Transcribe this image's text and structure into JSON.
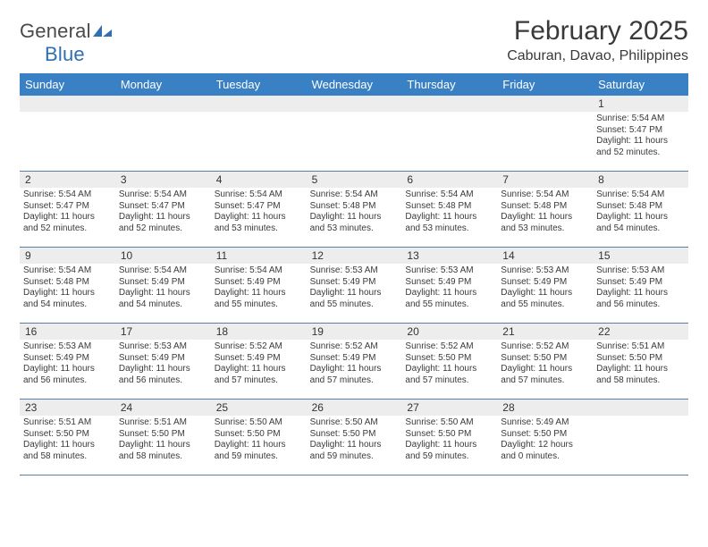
{
  "logo": {
    "text1": "General",
    "text2": "Blue",
    "icon_color": "#2f6fb3"
  },
  "title": "February 2025",
  "location": "Caburan, Davao, Philippines",
  "header_bg": "#3a80c4",
  "header_fg": "#ffffff",
  "daynum_bg": "#ededed",
  "row_border": "#5a7fa6",
  "text_color": "#3a3a3a",
  "weekday_fontsize": 13,
  "title_fontsize": 30,
  "location_fontsize": 16,
  "cell_fontsize": 10,
  "weekdays": [
    "Sunday",
    "Monday",
    "Tuesday",
    "Wednesday",
    "Thursday",
    "Friday",
    "Saturday"
  ],
  "weeks": [
    [
      {
        "n": "",
        "lines": []
      },
      {
        "n": "",
        "lines": []
      },
      {
        "n": "",
        "lines": []
      },
      {
        "n": "",
        "lines": []
      },
      {
        "n": "",
        "lines": []
      },
      {
        "n": "",
        "lines": []
      },
      {
        "n": "1",
        "lines": [
          "Sunrise: 5:54 AM",
          "Sunset: 5:47 PM",
          "Daylight: 11 hours and 52 minutes."
        ]
      }
    ],
    [
      {
        "n": "2",
        "lines": [
          "Sunrise: 5:54 AM",
          "Sunset: 5:47 PM",
          "Daylight: 11 hours and 52 minutes."
        ]
      },
      {
        "n": "3",
        "lines": [
          "Sunrise: 5:54 AM",
          "Sunset: 5:47 PM",
          "Daylight: 11 hours and 52 minutes."
        ]
      },
      {
        "n": "4",
        "lines": [
          "Sunrise: 5:54 AM",
          "Sunset: 5:47 PM",
          "Daylight: 11 hours and 53 minutes."
        ]
      },
      {
        "n": "5",
        "lines": [
          "Sunrise: 5:54 AM",
          "Sunset: 5:48 PM",
          "Daylight: 11 hours and 53 minutes."
        ]
      },
      {
        "n": "6",
        "lines": [
          "Sunrise: 5:54 AM",
          "Sunset: 5:48 PM",
          "Daylight: 11 hours and 53 minutes."
        ]
      },
      {
        "n": "7",
        "lines": [
          "Sunrise: 5:54 AM",
          "Sunset: 5:48 PM",
          "Daylight: 11 hours and 53 minutes."
        ]
      },
      {
        "n": "8",
        "lines": [
          "Sunrise: 5:54 AM",
          "Sunset: 5:48 PM",
          "Daylight: 11 hours and 54 minutes."
        ]
      }
    ],
    [
      {
        "n": "9",
        "lines": [
          "Sunrise: 5:54 AM",
          "Sunset: 5:48 PM",
          "Daylight: 11 hours and 54 minutes."
        ]
      },
      {
        "n": "10",
        "lines": [
          "Sunrise: 5:54 AM",
          "Sunset: 5:49 PM",
          "Daylight: 11 hours and 54 minutes."
        ]
      },
      {
        "n": "11",
        "lines": [
          "Sunrise: 5:54 AM",
          "Sunset: 5:49 PM",
          "Daylight: 11 hours and 55 minutes."
        ]
      },
      {
        "n": "12",
        "lines": [
          "Sunrise: 5:53 AM",
          "Sunset: 5:49 PM",
          "Daylight: 11 hours and 55 minutes."
        ]
      },
      {
        "n": "13",
        "lines": [
          "Sunrise: 5:53 AM",
          "Sunset: 5:49 PM",
          "Daylight: 11 hours and 55 minutes."
        ]
      },
      {
        "n": "14",
        "lines": [
          "Sunrise: 5:53 AM",
          "Sunset: 5:49 PM",
          "Daylight: 11 hours and 55 minutes."
        ]
      },
      {
        "n": "15",
        "lines": [
          "Sunrise: 5:53 AM",
          "Sunset: 5:49 PM",
          "Daylight: 11 hours and 56 minutes."
        ]
      }
    ],
    [
      {
        "n": "16",
        "lines": [
          "Sunrise: 5:53 AM",
          "Sunset: 5:49 PM",
          "Daylight: 11 hours and 56 minutes."
        ]
      },
      {
        "n": "17",
        "lines": [
          "Sunrise: 5:53 AM",
          "Sunset: 5:49 PM",
          "Daylight: 11 hours and 56 minutes."
        ]
      },
      {
        "n": "18",
        "lines": [
          "Sunrise: 5:52 AM",
          "Sunset: 5:49 PM",
          "Daylight: 11 hours and 57 minutes."
        ]
      },
      {
        "n": "19",
        "lines": [
          "Sunrise: 5:52 AM",
          "Sunset: 5:49 PM",
          "Daylight: 11 hours and 57 minutes."
        ]
      },
      {
        "n": "20",
        "lines": [
          "Sunrise: 5:52 AM",
          "Sunset: 5:50 PM",
          "Daylight: 11 hours and 57 minutes."
        ]
      },
      {
        "n": "21",
        "lines": [
          "Sunrise: 5:52 AM",
          "Sunset: 5:50 PM",
          "Daylight: 11 hours and 57 minutes."
        ]
      },
      {
        "n": "22",
        "lines": [
          "Sunrise: 5:51 AM",
          "Sunset: 5:50 PM",
          "Daylight: 11 hours and 58 minutes."
        ]
      }
    ],
    [
      {
        "n": "23",
        "lines": [
          "Sunrise: 5:51 AM",
          "Sunset: 5:50 PM",
          "Daylight: 11 hours and 58 minutes."
        ]
      },
      {
        "n": "24",
        "lines": [
          "Sunrise: 5:51 AM",
          "Sunset: 5:50 PM",
          "Daylight: 11 hours and 58 minutes."
        ]
      },
      {
        "n": "25",
        "lines": [
          "Sunrise: 5:50 AM",
          "Sunset: 5:50 PM",
          "Daylight: 11 hours and 59 minutes."
        ]
      },
      {
        "n": "26",
        "lines": [
          "Sunrise: 5:50 AM",
          "Sunset: 5:50 PM",
          "Daylight: 11 hours and 59 minutes."
        ]
      },
      {
        "n": "27",
        "lines": [
          "Sunrise: 5:50 AM",
          "Sunset: 5:50 PM",
          "Daylight: 11 hours and 59 minutes."
        ]
      },
      {
        "n": "28",
        "lines": [
          "Sunrise: 5:49 AM",
          "Sunset: 5:50 PM",
          "Daylight: 12 hours and 0 minutes."
        ]
      },
      {
        "n": "",
        "lines": []
      }
    ]
  ]
}
